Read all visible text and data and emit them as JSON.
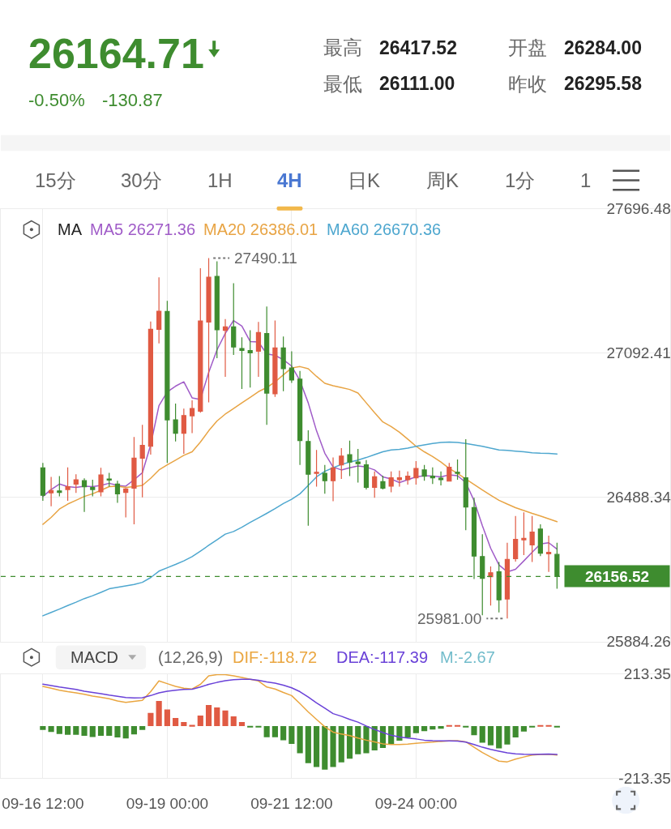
{
  "chart_data": [
    {
      "type": "other",
      "title": "26164.71",
      "annotations": [
        "-0.50%",
        "-130.87",
        "最高",
        "26417.52",
        "最低",
        "26111.00",
        "开盘",
        "26284.00",
        "昨收",
        "26295.58"
      ]
    },
    {
      "type": "other",
      "annotations": [
        "15分",
        "30分",
        "1H",
        "4H",
        "日K",
        "周K",
        "1分",
        "1"
      ],
      "colors": [
        "#666666",
        "#666666",
        "#666666",
        "#4a78d2",
        "#666666",
        "#666666",
        "#666666",
        "#666666"
      ]
    },
    {
      "type": "candlestick",
      "legend_title": "MA",
      "grid": true,
      "categories": [
        null,
        null,
        null,
        null,
        null,
        null,
        null,
        null,
        null,
        null,
        null,
        null,
        null,
        null,
        null,
        null,
        null,
        null,
        null,
        null,
        null,
        null,
        null,
        null,
        null,
        null,
        null,
        null,
        null,
        null,
        null,
        null,
        null,
        null,
        null,
        null,
        null,
        null,
        null,
        null,
        null,
        null,
        null,
        null,
        null,
        null,
        null,
        null,
        null,
        null,
        null,
        null,
        null,
        null,
        null,
        null,
        null,
        null,
        null,
        null,
        null,
        null,
        null
      ],
      "ohlc": [
        [
          26612,
          26632,
          26474,
          26497
        ],
        [
          26507,
          26574,
          26451,
          26517
        ],
        [
          26515,
          26577,
          26492,
          26509
        ],
        [
          26521,
          26614,
          26474,
          26533
        ],
        [
          26544,
          26585,
          26507,
          26562
        ],
        [
          26558,
          26568,
          26427,
          26533
        ],
        [
          26529,
          26562,
          26492,
          26521
        ],
        [
          26511,
          26612,
          26492,
          26582
        ],
        [
          26565,
          26591,
          26533,
          26561
        ],
        [
          26544,
          26558,
          26465,
          26503
        ],
        [
          26509,
          26527,
          26404,
          26523
        ],
        [
          26527,
          26741,
          26375,
          26652
        ],
        [
          26652,
          26792,
          26488,
          26706
        ],
        [
          26702,
          27225,
          26667,
          27192
        ],
        [
          27192,
          27410,
          27133,
          27268
        ],
        [
          27267,
          27311,
          26632,
          26813
        ],
        [
          26813,
          26881,
          26722,
          26757
        ],
        [
          26757,
          26860,
          26671,
          26831
        ],
        [
          26830,
          26895,
          26757,
          26860
        ],
        [
          26849,
          27448,
          26843,
          27227
        ],
        [
          27223,
          27490.11,
          26886,
          27410
        ],
        [
          27414,
          27477,
          27071,
          27190
        ],
        [
          27188,
          27235,
          26993,
          27202
        ],
        [
          27202,
          27385,
          27085,
          27118
        ],
        [
          27112,
          27159,
          26942,
          27104
        ],
        [
          27103,
          27188,
          26948,
          27094
        ],
        [
          27100,
          27223,
          26993,
          27179
        ],
        [
          27174,
          27288,
          26792,
          26925
        ],
        [
          26922,
          27229,
          26909,
          27114
        ],
        [
          27114,
          27162,
          26933,
          27027
        ],
        [
          27030,
          27100,
          26968,
          26980
        ],
        [
          26983,
          27018,
          26624,
          26726
        ],
        [
          26722,
          26769,
          26369,
          26585
        ],
        [
          26589,
          26687,
          26533,
          26593
        ],
        [
          26589,
          26624,
          26503,
          26558
        ],
        [
          26558,
          26655,
          26472,
          26612
        ],
        [
          26624,
          26694,
          26565,
          26661
        ],
        [
          26667,
          26726,
          26577,
          26636
        ],
        [
          26636,
          26691,
          26550,
          26629
        ],
        [
          26624,
          26644,
          26521,
          26530
        ],
        [
          26530,
          26597,
          26486,
          26574
        ],
        [
          26554,
          26579,
          26521,
          26527
        ],
        [
          26535,
          26597,
          26509,
          26570
        ],
        [
          26562,
          26600,
          26533,
          26570
        ],
        [
          26562,
          26597,
          26542,
          26577
        ],
        [
          26570,
          26640,
          26542,
          26609
        ],
        [
          26603,
          26624,
          26558,
          26577
        ],
        [
          26577,
          26614,
          26544,
          26570
        ],
        [
          26568,
          26597,
          26538,
          26562
        ],
        [
          26556,
          26632,
          26554,
          26614
        ],
        [
          26593,
          26647,
          26562,
          26589
        ],
        [
          26570,
          26732,
          26351,
          26448
        ],
        [
          26445,
          26486,
          26146,
          26242
        ],
        [
          26240,
          26334,
          25994,
          26149
        ],
        [
          26156,
          26199,
          26035,
          26172
        ],
        [
          26176,
          26217,
          26006,
          26059
        ],
        [
          26062,
          26298,
          25981.0,
          26228
        ],
        [
          26231,
          26410,
          26219,
          26312
        ],
        [
          26310,
          26425,
          26246,
          26316
        ],
        [
          26289,
          26410,
          26217,
          26343
        ],
        [
          26355,
          26375,
          26242,
          26254
        ],
        [
          26252,
          26328,
          26176,
          26258
        ],
        [
          26249,
          26298,
          26105,
          26156.52
        ]
      ],
      "series": [
        {
          "name": "MA5 26271.36",
          "type": "line",
          "color": "#a05cc8",
          "values": [
            26492,
            26521,
            26544,
            26533,
            26530,
            26535,
            26533,
            26538,
            26547,
            26538,
            26535,
            26562,
            26591,
            26708,
            26872,
            26930,
            26954,
            26972,
            26905,
            26898,
            27012,
            27106,
            27175,
            27229,
            27206,
            27141,
            27139,
            27089,
            27083,
            27065,
            27038,
            26977,
            26884,
            26767,
            26673,
            26615,
            26603,
            26612,
            26620,
            26615,
            26603,
            26574,
            26565,
            26550,
            26562,
            26574,
            26579,
            26577,
            26574,
            26582,
            26579,
            26550,
            26474,
            26369,
            26275,
            26205,
            26176,
            26187,
            26222,
            26258,
            26293,
            26298,
            26271
          ]
        },
        {
          "name": "MA20 26386.01",
          "type": "line",
          "color": "#e8a444",
          "values": [
            26375,
            26404,
            26439,
            26460,
            26476,
            26492,
            26503,
            26518,
            26533,
            26535,
            26530,
            26533,
            26538,
            26568,
            26603,
            26624,
            26644,
            26664,
            26679,
            26720,
            26767,
            26808,
            26837,
            26860,
            26884,
            26907,
            26931,
            26948,
            26972,
            27001,
            27030,
            27036,
            27027,
            26995,
            26966,
            26956,
            26948,
            26940,
            26925,
            26884,
            26843,
            26804,
            26785,
            26761,
            26732,
            26702,
            26679,
            26659,
            26636,
            26609,
            26589,
            26565,
            26542,
            26519,
            26497,
            26476,
            26460,
            26445,
            26433,
            26421,
            26410,
            26398,
            26386
          ]
        },
        {
          "name": "MA60 26670.36",
          "type": "line",
          "color": "#4ea7cf",
          "values": [
            25992,
            26006,
            26020,
            26035,
            26049,
            26064,
            26076,
            26090,
            26105,
            26111,
            26117,
            26123,
            26132,
            26152,
            26179,
            26193,
            26207,
            26222,
            26240,
            26263,
            26287,
            26310,
            26334,
            26345,
            26363,
            26383,
            26402,
            26421,
            26441,
            26462,
            26480,
            26503,
            26538,
            26574,
            26597,
            26612,
            26626,
            26636,
            26644,
            26655,
            26667,
            26679,
            26687,
            26689,
            26694,
            26702,
            26708,
            26714,
            26718,
            26720,
            26718,
            26714,
            26708,
            26702,
            26694,
            26687,
            26685,
            26682,
            26679,
            26675,
            26673,
            26672,
            26670
          ]
        }
      ],
      "ylim": [
        25884.26,
        27696.48
      ],
      "yticks": [
        27696.48,
        27092.41,
        26488.34,
        25884.26
      ],
      "ref_lines": [
        {
          "axis": "y",
          "value": 26156.52,
          "label": "26156.52",
          "color": "#3e8c2f",
          "line_style": "dashed"
        }
      ],
      "annotations": [
        "27490.11",
        "25981.00"
      ]
    },
    {
      "type": "bar",
      "legend_title": "MACD",
      "subtitle": "(12,26,9)",
      "grid": true,
      "categories": [
        "09-16 12:00",
        null,
        null,
        null,
        null,
        null,
        null,
        null,
        null,
        null,
        null,
        null,
        null,
        null,
        null,
        "09-19 00:00",
        null,
        null,
        null,
        null,
        null,
        null,
        null,
        null,
        null,
        null,
        null,
        null,
        null,
        null,
        "09-21 12:00",
        null,
        null,
        null,
        null,
        null,
        null,
        null,
        null,
        null,
        null,
        null,
        null,
        null,
        null,
        "09-24 00:00",
        null,
        null,
        null,
        null,
        null,
        null,
        null,
        null,
        null,
        null,
        null,
        null,
        null,
        null,
        null,
        null,
        null
      ],
      "series": [
        {
          "name": "DIF:-118.72",
          "type": "line",
          "color": "#eaa640",
          "values": [
            163,
            155,
            147,
            141,
            136,
            130,
            123,
            118,
            112,
            103,
            97,
            101,
            105,
            141,
            185,
            174,
            163,
            155,
            152,
            171,
            206,
            211,
            211,
            206,
            199,
            192,
            185,
            160,
            152,
            138,
            125,
            92,
            58,
            27,
            -3,
            -25,
            -33,
            -39,
            -49,
            -58,
            -65,
            -73,
            -76,
            -76,
            -74,
            -71,
            -68,
            -66,
            -63,
            -61,
            -60,
            -65,
            -87,
            -109,
            -127,
            -144,
            -147,
            -136,
            -127,
            -119,
            -117,
            -116,
            -119
          ]
        },
        {
          "name": "DEA:-117.39",
          "type": "line",
          "color": "#6a42d8",
          "values": [
            172,
            166,
            160,
            155,
            150,
            143,
            138,
            133,
            127,
            122,
            117,
            115,
            116,
            125,
            136,
            143,
            147,
            150,
            151,
            160,
            171,
            179,
            186,
            190,
            192,
            192,
            188,
            181,
            176,
            168,
            157,
            141,
            119,
            95,
            73,
            51,
            40,
            27,
            16,
            0,
            -14,
            -27,
            -38,
            -45,
            -49,
            -53,
            -58,
            -60,
            -61,
            -61,
            -62,
            -66,
            -76,
            -87,
            -96,
            -103,
            -110,
            -114,
            -116,
            -117,
            -116,
            -115,
            -117
          ]
        },
        {
          "type": "bar",
          "values": [
            -16,
            -24,
            -33,
            -36,
            -36,
            -40,
            -45,
            -40,
            -40,
            -47,
            -51,
            -34,
            -16,
            54,
            103,
            68,
            33,
            16,
            5,
            43,
            86,
            76,
            64,
            40,
            16,
            -3,
            -4,
            -46,
            -46,
            -58,
            -73,
            -112,
            -152,
            -168,
            -179,
            -168,
            -149,
            -134,
            -116,
            -112,
            -100,
            -90,
            -73,
            -60,
            -47,
            -29,
            -21,
            -14,
            -11,
            3,
            3,
            -5,
            -38,
            -68,
            -79,
            -92,
            -76,
            -47,
            -23,
            -3,
            3,
            3,
            -3
          ],
          "colors": [
            "#3e8c2f",
            "#3e8c2f",
            "#3e8c2f",
            "#3e8c2f",
            "#3e8c2f",
            "#3e8c2f",
            "#3e8c2f",
            "#3e8c2f",
            "#3e8c2f",
            "#3e8c2f",
            "#3e8c2f",
            "#3e8c2f",
            "#3e8c2f",
            "#e05a43",
            "#e05a43",
            "#e05a43",
            "#e05a43",
            "#e05a43",
            "#e05a43",
            "#e05a43",
            "#e05a43",
            "#e05a43",
            "#e05a43",
            "#e05a43",
            "#e05a43",
            "#3e8c2f",
            "#3e8c2f",
            "#3e8c2f",
            "#3e8c2f",
            "#3e8c2f",
            "#3e8c2f",
            "#3e8c2f",
            "#3e8c2f",
            "#3e8c2f",
            "#3e8c2f",
            "#3e8c2f",
            "#3e8c2f",
            "#3e8c2f",
            "#3e8c2f",
            "#3e8c2f",
            "#3e8c2f",
            "#3e8c2f",
            "#3e8c2f",
            "#3e8c2f",
            "#3e8c2f",
            "#3e8c2f",
            "#3e8c2f",
            "#3e8c2f",
            "#3e8c2f",
            "#e05a43",
            "#e05a43",
            "#3e8c2f",
            "#3e8c2f",
            "#3e8c2f",
            "#3e8c2f",
            "#3e8c2f",
            "#3e8c2f",
            "#3e8c2f",
            "#3e8c2f",
            "#3e8c2f",
            "#e05a43",
            "#e05a43",
            "#3e8c2f"
          ]
        }
      ],
      "annotations": [
        "M:-2.67"
      ],
      "ylim": [
        -213.35,
        213.35
      ],
      "yticks": [
        213.35,
        -213.35
      ]
    }
  ]
}
